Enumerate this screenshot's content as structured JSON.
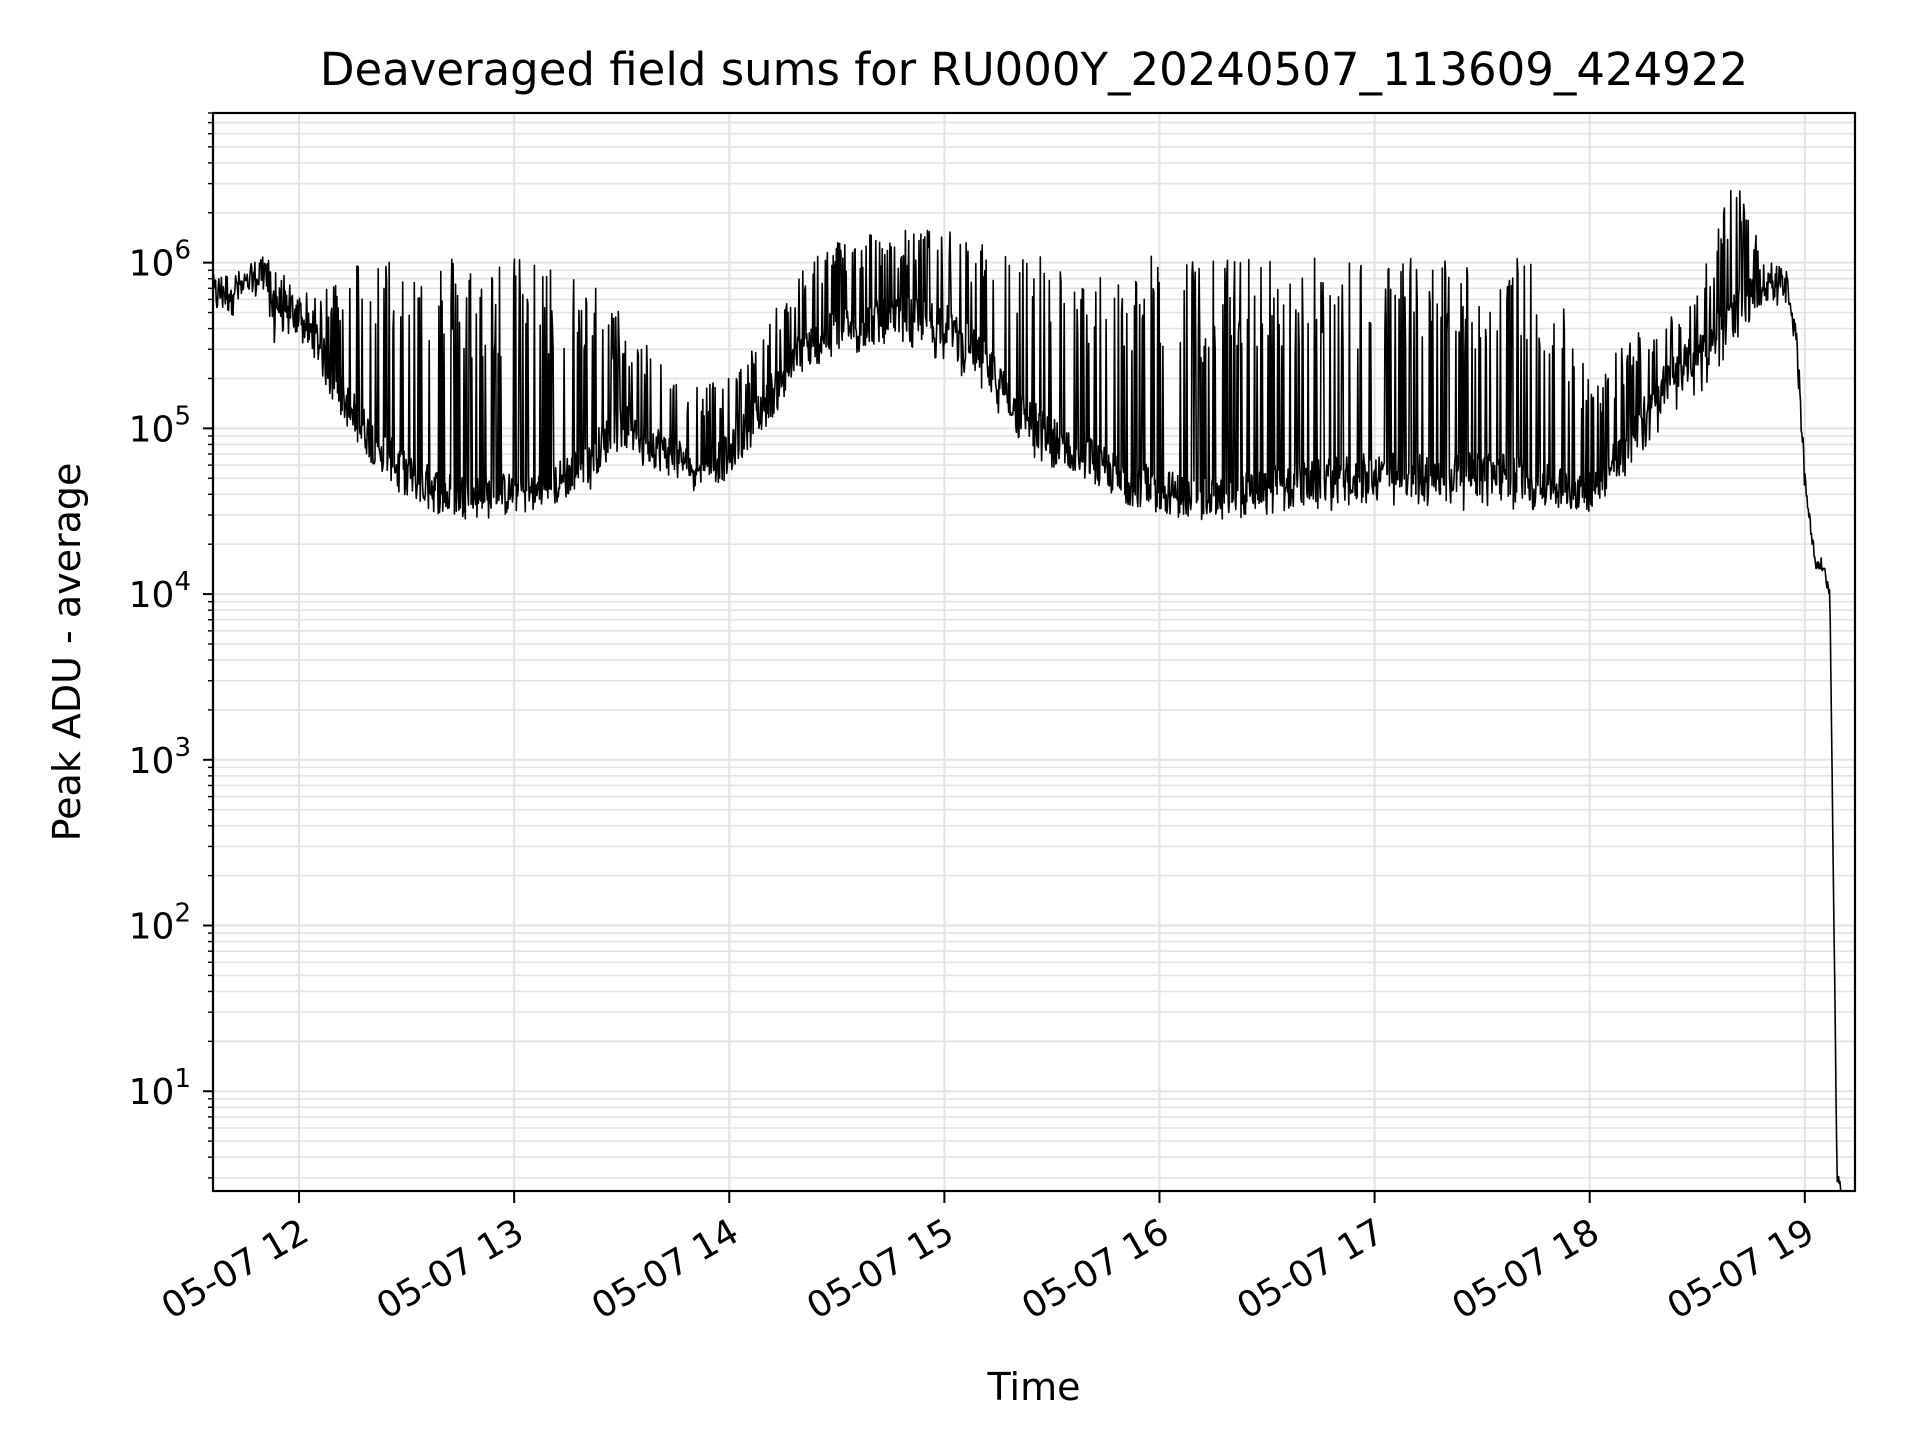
{
  "chart_data": {
    "type": "line",
    "title": "Deaveraged field sums for RU000Y_20240507_113609_424922",
    "xlabel": "Time",
    "ylabel": "Peak ADU - average",
    "yscale": "log",
    "xlim": [
      "2024-05-07 11:36",
      "2024-05-07 19:14"
    ],
    "ylim": [
      2.5,
      8000000
    ],
    "grid": true,
    "line_color": "#000000",
    "x_tick_labels": [
      "05-07 12",
      "05-07 13",
      "05-07 14",
      "05-07 15",
      "05-07 16",
      "05-07 17",
      "05-07 18",
      "05-07 19"
    ],
    "x_ticks": [
      "2024-05-07 12:00",
      "2024-05-07 13:00",
      "2024-05-07 14:00",
      "2024-05-07 15:00",
      "2024-05-07 16:00",
      "2024-05-07 17:00",
      "2024-05-07 18:00",
      "2024-05-07 19:00"
    ],
    "y_tick_labels": [
      {
        "base": "10",
        "exp": "1",
        "value": 10
      },
      {
        "base": "10",
        "exp": "2",
        "value": 100
      },
      {
        "base": "10",
        "exp": "3",
        "value": 1000
      },
      {
        "base": "10",
        "exp": "4",
        "value": 10000
      },
      {
        "base": "10",
        "exp": "5",
        "value": 100000
      },
      {
        "base": "10",
        "exp": "6",
        "value": 1000000
      }
    ],
    "series": [
      {
        "x": [
          "2024-05-07 11:36",
          "2024-05-07 11:40",
          "2024-05-07 11:45",
          "2024-05-07 11:50",
          "2024-05-07 11:53",
          "2024-05-07 11:57",
          "2024-05-07 12:00",
          "2024-05-07 12:05",
          "2024-05-07 12:10",
          "2024-05-07 12:15",
          "2024-05-07 12:20",
          "2024-05-07 12:30",
          "2024-05-07 12:40",
          "2024-05-07 12:50",
          "2024-05-07 13:00",
          "2024-05-07 13:10",
          "2024-05-07 13:20",
          "2024-05-07 13:30",
          "2024-05-07 13:40",
          "2024-05-07 13:50",
          "2024-05-07 14:00",
          "2024-05-07 14:10",
          "2024-05-07 14:20",
          "2024-05-07 14:30",
          "2024-05-07 14:40",
          "2024-05-07 14:50",
          "2024-05-07 15:00",
          "2024-05-07 15:10",
          "2024-05-07 15:20",
          "2024-05-07 15:30",
          "2024-05-07 15:40",
          "2024-05-07 15:50",
          "2024-05-07 16:00",
          "2024-05-07 16:10",
          "2024-05-07 16:20",
          "2024-05-07 16:30",
          "2024-05-07 16:40",
          "2024-05-07 16:50",
          "2024-05-07 17:00",
          "2024-05-07 17:10",
          "2024-05-07 17:20",
          "2024-05-07 17:30",
          "2024-05-07 17:40",
          "2024-05-07 17:50",
          "2024-05-07 18:00",
          "2024-05-07 18:10",
          "2024-05-07 18:20",
          "2024-05-07 18:30",
          "2024-05-07 18:40",
          "2024-05-07 18:50",
          "2024-05-07 18:55",
          "2024-05-07 18:58",
          "2024-05-07 19:00",
          "2024-05-07 19:03",
          "2024-05-07 19:05",
          "2024-05-07 19:07",
          "2024-05-07 19:09",
          "2024-05-07 19:10"
        ],
        "baseline": [
          650000,
          680000,
          700000,
          900000,
          600000,
          500000,
          450000,
          350000,
          180000,
          130000,
          90000,
          55000,
          42000,
          40000,
          42000,
          45000,
          65000,
          110000,
          80000,
          60000,
          70000,
          150000,
          300000,
          400000,
          450000,
          480000,
          450000,
          280000,
          140000,
          90000,
          70000,
          50000,
          45000,
          38000,
          40000,
          45000,
          48000,
          52000,
          55000,
          55000,
          55000,
          55000,
          55000,
          45000,
          45000,
          80000,
          180000,
          300000,
          500000,
          800000,
          700000,
          300000,
          50000,
          15000,
          15000,
          10000,
          3,
          2.5
        ],
        "spike_high": [
          700000,
          750000,
          800000,
          1100000,
          1000000,
          800000,
          700000,
          600000,
          900000,
          1100000,
          1200000,
          1200000,
          1200000,
          1150000,
          1100000,
          1000000,
          900000,
          500000,
          300000,
          200000,
          200000,
          400000,
          1000000,
          1400000,
          1600000,
          1600000,
          1600000,
          1300000,
          1200000,
          1200000,
          700000,
          1100000,
          1100000,
          1100000,
          1100000,
          1100000,
          1100000,
          1100000,
          1100000,
          1100000,
          1100000,
          1100000,
          1100000,
          900000,
          200000,
          350000,
          500000,
          700000,
          3500000,
          900000,
          800000,
          300000,
          50000,
          17000,
          17000,
          12000,
          3,
          2.5
        ],
        "spike_low": [
          600000,
          620000,
          650000,
          700000,
          300000,
          350000,
          400000,
          250000,
          150000,
          90000,
          60000,
          35000,
          30000,
          30000,
          35000,
          35000,
          40000,
          60000,
          55000,
          50000,
          55000,
          100000,
          200000,
          250000,
          300000,
          300000,
          250000,
          150000,
          80000,
          50000,
          45000,
          35000,
          30000,
          28000,
          30000,
          30000,
          32000,
          32000,
          32000,
          32000,
          32000,
          32000,
          32000,
          32000,
          32000,
          50000,
          100000,
          150000,
          300000,
          700000,
          600000,
          250000,
          40000,
          13000,
          13000,
          8000,
          3,
          2.5
        ]
      }
    ]
  }
}
